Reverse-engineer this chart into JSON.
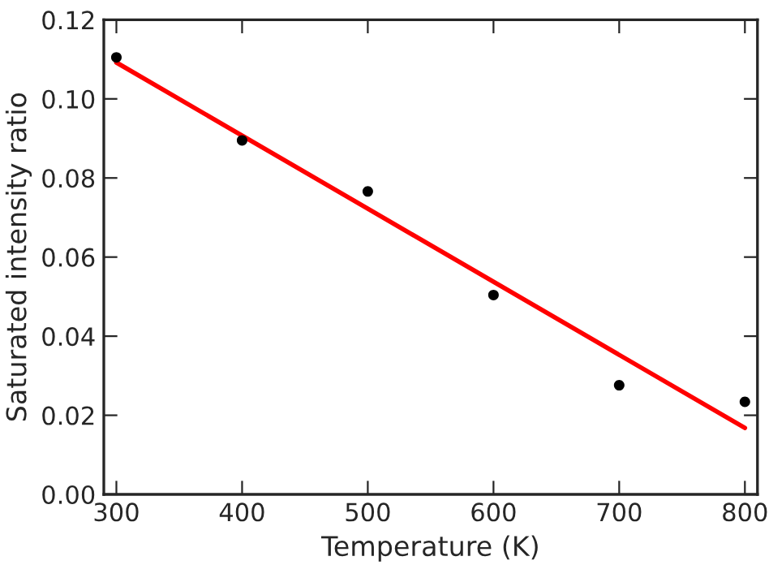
{
  "chart_data": {
    "type": "scatter",
    "xlabel": "Temperature (K)",
    "ylabel": "Saturated intensity ratio",
    "x": [
      300,
      400,
      500,
      600,
      700,
      800
    ],
    "series": [
      {
        "color": "#000000",
        "values": [
          0.1105,
          0.0895,
          0.0766,
          0.0504,
          0.0276,
          0.0234
        ]
      },
      {
        "type": "line",
        "color": "#ff0000",
        "x": [
          300,
          800
        ],
        "values": [
          0.1092,
          0.0168
        ]
      }
    ],
    "xlim": [
      290,
      810
    ],
    "ylim": [
      0,
      0.12
    ],
    "xticks": [
      300,
      400,
      500,
      600,
      700,
      800
    ],
    "yticks": [
      {
        "value": 0,
        "label": "0.00"
      },
      {
        "value": 0.02,
        "label": "0.02"
      },
      {
        "value": 0.04,
        "label": "0.04"
      },
      {
        "value": 0.06,
        "label": "0.06"
      },
      {
        "value": 0.08,
        "label": "0.08"
      },
      {
        "value": 0.1,
        "label": "0.10"
      },
      {
        "value": 0.12,
        "label": "0.12"
      }
    ],
    "grid": false
  }
}
